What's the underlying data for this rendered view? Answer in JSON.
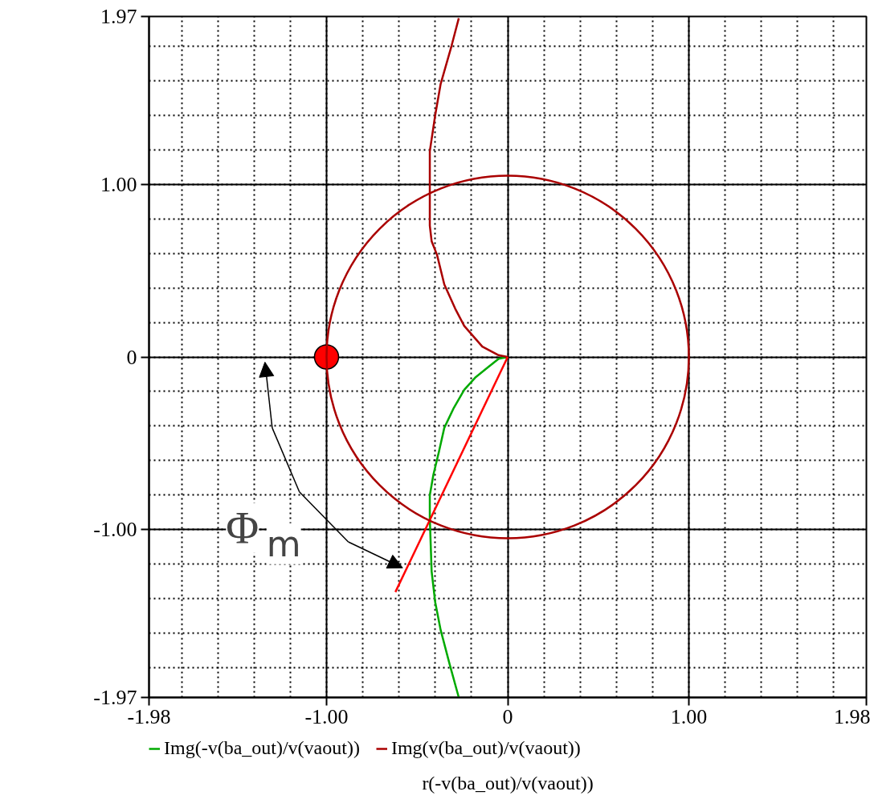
{
  "chart_data": {
    "type": "line",
    "xlabel": "r(-v(ba_out)/v(vaout))",
    "xlim": [
      -1.98,
      1.98
    ],
    "ylim": [
      -1.97,
      1.97
    ],
    "xticks": [
      -1.98,
      {
        "value": -1,
        "label": "-1.00"
      },
      0,
      {
        "value": 1,
        "label": "1.00"
      },
      1.98
    ],
    "yticks": [
      -1.97,
      {
        "value": -1,
        "label": "-1.00"
      },
      0,
      {
        "value": 1,
        "label": "1.00"
      },
      1.97
    ],
    "grid": true,
    "legend": "bottom",
    "line_style": "solid",
    "series": [
      {
        "name": "Img(-v(ba_out)/v(vaout))",
        "color": "#00aa00",
        "x": [
          0,
          -0.05,
          -0.11,
          -0.18,
          -0.24,
          -0.3,
          -0.35,
          -0.38,
          -0.41,
          -0.43,
          -0.43,
          -0.42,
          -0.4,
          -0.37,
          -0.32,
          -0.27
        ],
        "values": [
          0,
          -0.01,
          -0.06,
          -0.12,
          -0.19,
          -0.3,
          -0.41,
          -0.55,
          -0.68,
          -0.8,
          -0.93,
          -1.24,
          -1.42,
          -1.58,
          -1.78,
          -1.97
        ]
      },
      {
        "name": "Img(v(ba_out)/v(vaout))",
        "color": "#aa0000",
        "x": [
          0,
          -0.05,
          -0.14,
          -0.24,
          -0.29,
          -0.35,
          -0.39,
          -0.42,
          -0.43,
          -0.43,
          -0.43,
          -0.4,
          -0.37,
          -0.31,
          -0.27
        ],
        "values": [
          0,
          0.01,
          0.06,
          0.18,
          0.28,
          0.42,
          0.59,
          0.67,
          0.76,
          1.0,
          1.19,
          1.4,
          1.58,
          1.8,
          1.96
        ]
      },
      {
        "color": "#ff0000",
        "x": [
          0,
          -0.62
        ],
        "values": [
          0,
          -1.36
        ]
      },
      {
        "type": "scatter",
        "marker": "circle",
        "color": "#ff0000",
        "x": [
          -1
        ],
        "values": [
          0
        ]
      }
    ],
    "annotations": [
      "Φ$_{m}$"
    ]
  }
}
